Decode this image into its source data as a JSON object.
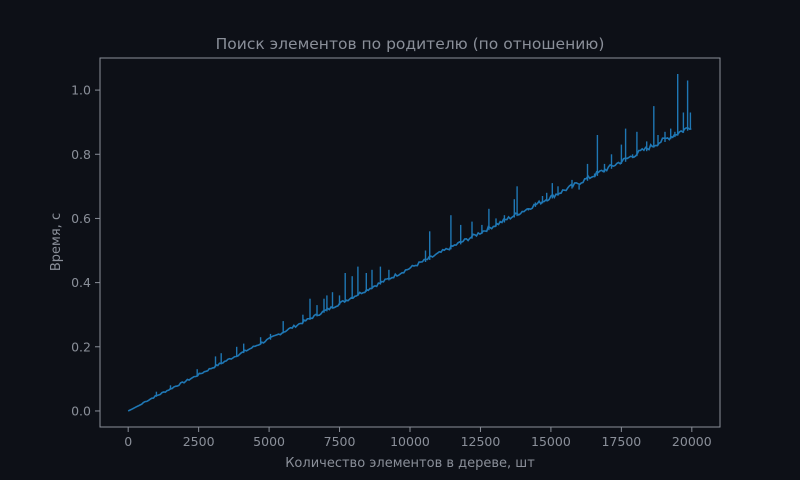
{
  "chart_data": {
    "type": "line",
    "title": "Поиск элементов по родителю (по отношению)",
    "xlabel": "Количество элементов в дереве, шт",
    "ylabel": "Время, с",
    "xlim": [
      -1000,
      21000
    ],
    "ylim": [
      -0.05,
      1.1
    ],
    "xticks": [
      0,
      2500,
      5000,
      7500,
      10000,
      12500,
      15000,
      17500,
      20000
    ],
    "xtick_labels": [
      "0",
      "2500",
      "5000",
      "7500",
      "10000",
      "12500",
      "15000",
      "17500",
      "20000"
    ],
    "yticks": [
      0.0,
      0.2,
      0.4,
      0.6,
      0.8,
      1.0
    ],
    "ytick_labels": [
      "0.0",
      "0.2",
      "0.4",
      "0.6",
      "0.8",
      "1.0"
    ],
    "grid": false,
    "series": [
      {
        "color": "#1f77b4",
        "baseline": {
          "x": [
            0,
            20000
          ],
          "y": [
            0.0,
            0.88
          ]
        },
        "spikes": {
          "x": [
            1000,
            1500,
            2450,
            3100,
            3300,
            3850,
            4100,
            4700,
            5050,
            5500,
            6200,
            6450,
            6700,
            6950,
            7050,
            7250,
            7500,
            7700,
            7950,
            8150,
            8450,
            8650,
            8950,
            9250,
            10550,
            10700,
            11450,
            11800,
            12200,
            12550,
            12800,
            13050,
            13350,
            13700,
            13800,
            14200,
            14450,
            14700,
            14850,
            15050,
            15250,
            15750,
            16000,
            16300,
            16550,
            16650,
            16900,
            17150,
            17500,
            17650,
            17900,
            18050,
            18400,
            18650,
            18800,
            19050,
            19250,
            19400,
            19500,
            19700,
            19850,
            19950
          ],
          "y": [
            0.06,
            0.08,
            0.13,
            0.17,
            0.18,
            0.2,
            0.21,
            0.23,
            0.24,
            0.28,
            0.3,
            0.35,
            0.33,
            0.35,
            0.36,
            0.37,
            0.36,
            0.43,
            0.42,
            0.45,
            0.43,
            0.44,
            0.45,
            0.44,
            0.5,
            0.56,
            0.61,
            0.58,
            0.59,
            0.58,
            0.63,
            0.6,
            0.61,
            0.66,
            0.7,
            0.63,
            0.65,
            0.67,
            0.68,
            0.71,
            0.7,
            0.72,
            0.69,
            0.77,
            0.74,
            0.86,
            0.77,
            0.8,
            0.83,
            0.88,
            0.8,
            0.87,
            0.84,
            0.95,
            0.86,
            0.87,
            0.88,
            0.87,
            1.05,
            0.93,
            1.03,
            0.93
          ]
        }
      }
    ]
  }
}
